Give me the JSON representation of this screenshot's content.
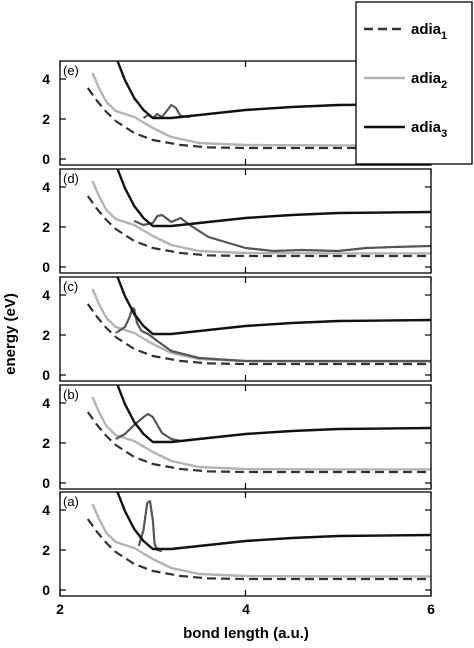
{
  "colors": {
    "adia1": "#333333",
    "adia2": "#b3b3b3",
    "adia3": "#111111",
    "diabatic": "#555555"
  },
  "chart_data": {
    "type": "line",
    "layout": "stacked-panels",
    "xlabel": "bond length (a.u.)",
    "ylabel": "energy (eV)",
    "xlim": [
      2,
      6
    ],
    "ylim": [
      -0.3,
      4.9
    ],
    "x_ticks": [
      "2",
      "4",
      "6"
    ],
    "y_ticks": [
      "0",
      "2",
      "4"
    ],
    "legend": {
      "placement": "top-right",
      "entries": [
        {
          "base": "adia",
          "sub": "1",
          "style": "dashed",
          "color_key": "adia1"
        },
        {
          "base": "adia",
          "sub": "2",
          "style": "solid",
          "color_key": "adia2"
        },
        {
          "base": "adia",
          "sub": "3",
          "style": "solid",
          "color_key": "adia3"
        }
      ]
    },
    "shared_series": [
      {
        "name": "adia1",
        "x": [
          2.3,
          2.4,
          2.5,
          2.6,
          2.8,
          3.0,
          3.3,
          3.6,
          4.0,
          5.0,
          6.0
        ],
        "y": [
          3.55,
          2.9,
          2.35,
          1.9,
          1.3,
          0.95,
          0.7,
          0.58,
          0.55,
          0.55,
          0.55
        ]
      },
      {
        "name": "adia2",
        "x": [
          2.35,
          2.42,
          2.5,
          2.6,
          2.7,
          2.8,
          3.0,
          3.2,
          3.5,
          4.0,
          5.0,
          6.0
        ],
        "y": [
          4.3,
          3.55,
          2.85,
          2.4,
          2.25,
          2.1,
          1.55,
          1.1,
          0.8,
          0.7,
          0.68,
          0.68
        ]
      },
      {
        "name": "adia3",
        "x": [
          2.62,
          2.7,
          2.8,
          2.9,
          3.0,
          3.2,
          3.5,
          4.0,
          4.5,
          5.0,
          6.0
        ],
        "y": [
          4.9,
          3.95,
          3.05,
          2.45,
          2.05,
          2.05,
          2.2,
          2.45,
          2.6,
          2.7,
          2.75
        ]
      }
    ],
    "panels": [
      {
        "label": "(e)",
        "diabatic": {
          "x": [
            2.9,
            2.95,
            3.0,
            3.05,
            3.1,
            3.15,
            3.2,
            3.25,
            3.3,
            3.4
          ],
          "y": [
            2.05,
            2.2,
            2.05,
            2.25,
            2.1,
            2.4,
            2.7,
            2.55,
            2.15,
            2.1
          ]
        }
      },
      {
        "label": "(d)",
        "diabatic": {
          "x": [
            2.8,
            2.9,
            3.0,
            3.05,
            3.1,
            3.2,
            3.3,
            3.4,
            3.6,
            4.0,
            4.3,
            4.6,
            5.0,
            5.3,
            5.6,
            6.0
          ],
          "y": [
            2.3,
            2.1,
            2.2,
            2.55,
            2.6,
            2.25,
            2.45,
            2.1,
            1.5,
            0.95,
            0.8,
            0.85,
            0.8,
            0.95,
            1.0,
            1.05
          ]
        }
      },
      {
        "label": "(c)",
        "diabatic": {
          "x": [
            2.6,
            2.7,
            2.75,
            2.78,
            2.8,
            2.83,
            2.88,
            2.95,
            3.05,
            3.2,
            3.5,
            4.0,
            5.0,
            6.0
          ],
          "y": [
            2.1,
            2.4,
            2.9,
            3.35,
            3.3,
            2.6,
            2.2,
            2.05,
            1.7,
            1.2,
            0.85,
            0.7,
            0.7,
            0.7
          ]
        }
      },
      {
        "label": "(b)",
        "diabatic": {
          "x": [
            2.6,
            2.7,
            2.8,
            2.9,
            2.95,
            3.0,
            3.05,
            3.1,
            3.2,
            3.3
          ],
          "y": [
            2.2,
            2.45,
            2.9,
            3.3,
            3.45,
            3.3,
            2.9,
            2.5,
            2.2,
            2.1
          ]
        }
      },
      {
        "label": "(a)",
        "diabatic": {
          "x": [
            2.85,
            2.9,
            2.94,
            2.97,
            3.0,
            3.02,
            3.05,
            3.1
          ],
          "y": [
            2.2,
            3.0,
            4.35,
            4.45,
            3.5,
            2.3,
            2.0,
            1.95
          ]
        }
      }
    ]
  }
}
